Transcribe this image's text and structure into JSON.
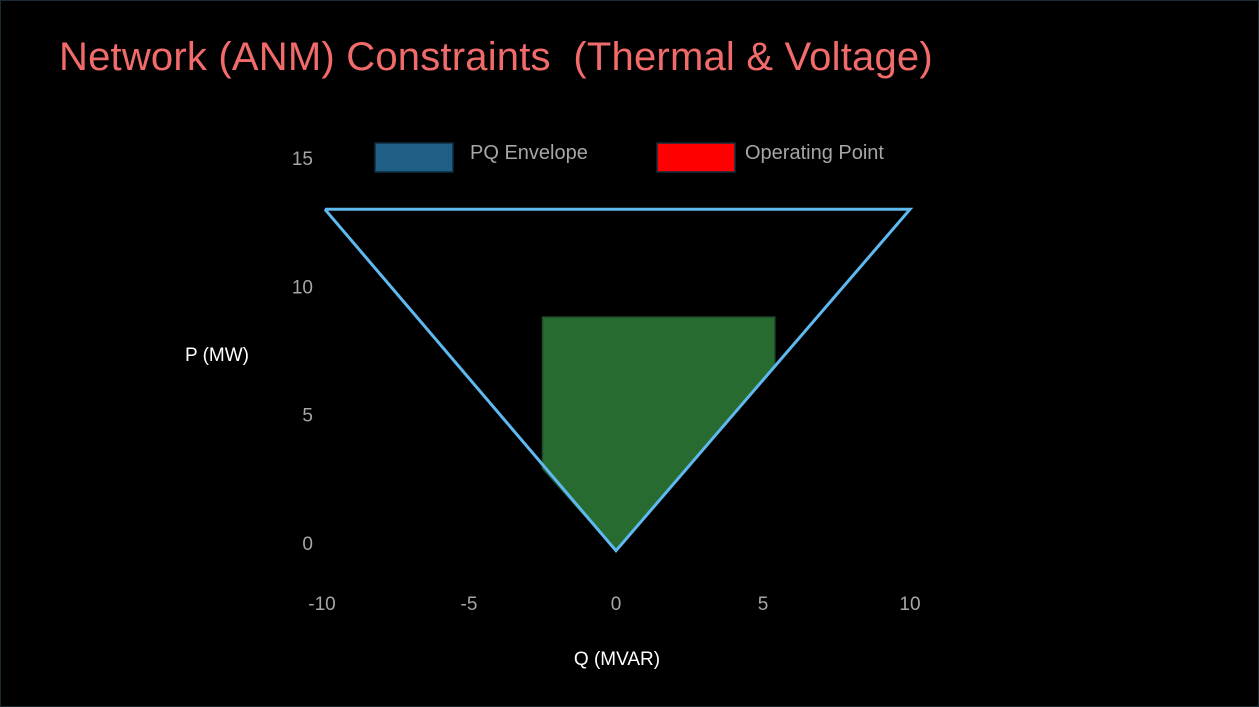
{
  "slide": {
    "title": "Network (ANM) Constraints  (Thermal & Voltage)"
  },
  "chart_data": {
    "type": "area",
    "xlabel": "Q (MVAR)",
    "ylabel": "P (MW)",
    "xlim": [
      -10,
      10
    ],
    "ylim": [
      0,
      15
    ],
    "x_ticks": [
      "-10",
      "-5",
      "0",
      "5",
      "10"
    ],
    "y_ticks": [
      "0",
      "5",
      "10",
      "15"
    ],
    "grid": false,
    "legend_position": "top",
    "legend": [
      {
        "label": "PQ Envelope",
        "color": "#1f5f86"
      },
      {
        "label": "Operating Point",
        "color": "#ff0000"
      }
    ],
    "series": [
      {
        "kind": "outline",
        "color": "#5fb8ee",
        "points": [
          [
            -9.9,
            13
          ],
          [
            10.0,
            13
          ],
          [
            0.0,
            -0.3
          ],
          [
            -9.9,
            13
          ]
        ]
      },
      {
        "kind": "filled_region",
        "color": "#276b30",
        "points": [
          [
            -2.5,
            8.8
          ],
          [
            5.4,
            8.8
          ],
          [
            5.4,
            6.9
          ],
          [
            0.0,
            -0.3
          ],
          [
            -2.5,
            2.9
          ],
          [
            -2.5,
            8.8
          ]
        ]
      }
    ]
  }
}
